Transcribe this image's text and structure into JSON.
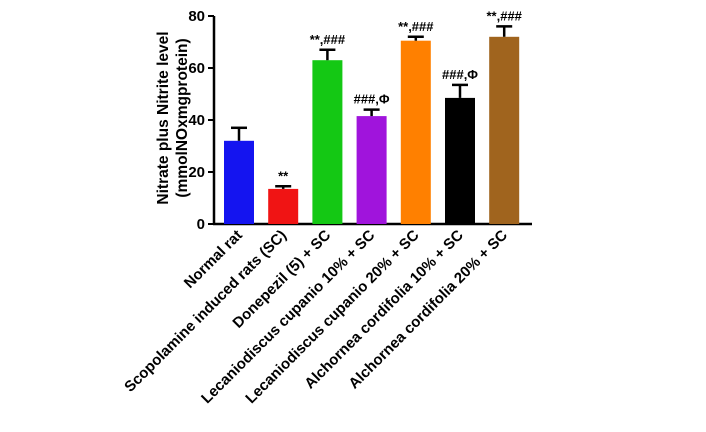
{
  "chart_data": {
    "type": "bar",
    "ylabel_line1": "Nitrate plus Nitrite level",
    "ylabel_line2": "(mmolNOxmgprotein)",
    "ylim": [
      0,
      80
    ],
    "yticks": [
      0,
      20,
      40,
      60,
      80
    ],
    "grid": false,
    "legend": "none",
    "categories": [
      "Normal rat",
      "Scopolamine induced rats (SC)",
      "Donepezil (5) + SC",
      "Lecaniodiscus cupanio 10% + SC",
      "Lecaniodiscus cupanio 20% + SC",
      "Alchornea cordifolia 10% + SC",
      "Alchornea cordifolia 20% + SC"
    ],
    "values": [
      32,
      13.5,
      63,
      41.5,
      70.5,
      48.5,
      72
    ],
    "errors": [
      5,
      1,
      4,
      2.5,
      1.5,
      5,
      4
    ],
    "annotations": [
      "",
      "**",
      "**,###",
      "###,Φ",
      "**,###",
      "###,Φ",
      "**,###"
    ],
    "colors": [
      "#1414f0",
      "#f01414",
      "#14c814",
      "#a014dc",
      "#ff8000",
      "#000000",
      "#a0641e"
    ]
  }
}
